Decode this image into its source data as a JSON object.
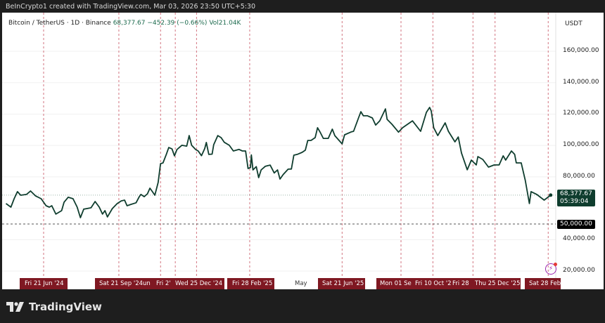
{
  "header": {
    "credit": "BeInCrypto1 created with TradingView.com, Mar 03, 2026 23:50 UTC+5:30"
  },
  "legend": {
    "symbol": "Bitcoin / TetherUS · 1D · Binance",
    "last": "68,377.67",
    "change": "−452.39 (−0.66%)",
    "volume": "Vol21.04K"
  },
  "price_axis": {
    "currency": "USDT",
    "ticks": [
      "160,000.00",
      "140,000.00",
      "120,000.00",
      "100,000.00",
      "80,000.00",
      "40,000.00",
      "20,000.00"
    ]
  },
  "price_tag": {
    "price": "68,377.67",
    "countdown": "05:39:04",
    "color": "#0f3d2e"
  },
  "level_tag": {
    "price": "50,000.00"
  },
  "colors": {
    "line": "#0f3d2e",
    "marker_lines": "#c0394a",
    "date_label_bg": "#7f1822"
  },
  "brand": {
    "name": "TradingView"
  },
  "chart_data": {
    "type": "line",
    "title": "Bitcoin / TetherUS · 1D · Binance",
    "ylabel": "USDT",
    "ylim": [
      20000,
      160000
    ],
    "y_ticks": [
      20000,
      40000,
      60000,
      80000,
      100000,
      120000,
      140000,
      160000
    ],
    "grid": true,
    "horizontal_levels": [
      50000
    ],
    "last_price": 68377.67,
    "marker_dates": [
      "2024-06-21",
      "2024-09-21",
      "2024-11-11",
      "2024-11-29",
      "2024-12-25",
      "2025-02-28",
      "2025-06-21",
      "2025-09-01",
      "2025-10-10",
      "2025-11-28",
      "2025-12-25",
      "2026-02-28"
    ],
    "x_labels": [
      {
        "text": "Fri 21 Jun '24",
        "boxed": true
      },
      {
        "text": "Sat 21 Sep '24",
        "boxed": true
      },
      {
        "text": "un",
        "boxed": true
      },
      {
        "text": "Fri 2'",
        "boxed": true
      },
      {
        "text": "Wed 25 Dec '24",
        "boxed": true
      },
      {
        "text": "Fri 28 Feb '25",
        "boxed": true
      },
      {
        "text": "May",
        "boxed": false
      },
      {
        "text": "Sat 21 Jun '25",
        "boxed": true
      },
      {
        "text": "Mon 01 Se",
        "boxed": true
      },
      {
        "text": "Fri 10 Oct '2",
        "boxed": true
      },
      {
        "text": "Fri 28",
        "boxed": true
      },
      {
        "text": "Thu 25 Dec '25",
        "boxed": true
      },
      {
        "text": "Sat 28 Feb",
        "boxed": true
      }
    ],
    "series": [
      {
        "points": [
          [
            "2024-05-06",
            63000
          ],
          [
            "2024-05-12",
            60700
          ],
          [
            "2024-05-16",
            66100
          ],
          [
            "2024-05-20",
            70600
          ],
          [
            "2024-05-24",
            68300
          ],
          [
            "2024-05-31",
            68800
          ],
          [
            "2024-06-05",
            71000
          ],
          [
            "2024-06-11",
            67900
          ],
          [
            "2024-06-18",
            66100
          ],
          [
            "2024-06-24",
            61600
          ],
          [
            "2024-06-28",
            60700
          ],
          [
            "2024-07-01",
            61600
          ],
          [
            "2024-07-06",
            56300
          ],
          [
            "2024-07-13",
            58500
          ],
          [
            "2024-07-16",
            63900
          ],
          [
            "2024-07-21",
            67000
          ],
          [
            "2024-07-27",
            66100
          ],
          [
            "2024-08-01",
            60700
          ],
          [
            "2024-08-05",
            54000
          ],
          [
            "2024-08-09",
            59400
          ],
          [
            "2024-08-18",
            60300
          ],
          [
            "2024-08-23",
            64300
          ],
          [
            "2024-08-28",
            60700
          ],
          [
            "2024-09-01",
            56300
          ],
          [
            "2024-09-04",
            58500
          ],
          [
            "2024-09-07",
            54500
          ],
          [
            "2024-09-13",
            59800
          ],
          [
            "2024-09-19",
            63000
          ],
          [
            "2024-09-24",
            64700
          ],
          [
            "2024-09-28",
            65200
          ],
          [
            "2024-10-01",
            61600
          ],
          [
            "2024-10-06",
            62500
          ],
          [
            "2024-10-12",
            63500
          ],
          [
            "2024-10-16",
            67400
          ],
          [
            "2024-10-18",
            68800
          ],
          [
            "2024-10-22",
            67400
          ],
          [
            "2024-10-26",
            69200
          ],
          [
            "2024-10-29",
            72800
          ],
          [
            "2024-11-01",
            70600
          ],
          [
            "2024-11-04",
            68300
          ],
          [
            "2024-11-08",
            76400
          ],
          [
            "2024-11-11",
            88400
          ],
          [
            "2024-11-14",
            88900
          ],
          [
            "2024-11-18",
            94300
          ],
          [
            "2024-11-21",
            98700
          ],
          [
            "2024-11-25",
            97800
          ],
          [
            "2024-11-28",
            93400
          ],
          [
            "2024-12-01",
            97400
          ],
          [
            "2024-12-07",
            100100
          ],
          [
            "2024-12-13",
            99600
          ],
          [
            "2024-12-16",
            106300
          ],
          [
            "2024-12-19",
            100100
          ],
          [
            "2024-12-24",
            97400
          ],
          [
            "2024-12-27",
            96500
          ],
          [
            "2024-12-31",
            93500
          ],
          [
            "2025-01-04",
            98000
          ],
          [
            "2025-01-06",
            101900
          ],
          [
            "2025-01-09",
            94300
          ],
          [
            "2025-01-13",
            94500
          ],
          [
            "2025-01-15",
            100500
          ],
          [
            "2025-01-20",
            106300
          ],
          [
            "2025-01-24",
            105000
          ],
          [
            "2025-01-28",
            102000
          ],
          [
            "2025-02-03",
            100100
          ],
          [
            "2025-02-08",
            96500
          ],
          [
            "2025-02-15",
            97500
          ],
          [
            "2025-02-19",
            96500
          ],
          [
            "2025-02-23",
            96500
          ],
          [
            "2025-02-26",
            85300
          ],
          [
            "2025-03-01",
            86000
          ],
          [
            "2025-03-02",
            94000
          ],
          [
            "2025-03-04",
            84400
          ],
          [
            "2025-03-08",
            86500
          ],
          [
            "2025-03-11",
            79500
          ],
          [
            "2025-03-14",
            84400
          ],
          [
            "2025-03-19",
            86700
          ],
          [
            "2025-03-25",
            87500
          ],
          [
            "2025-03-30",
            82500
          ],
          [
            "2025-04-03",
            84400
          ],
          [
            "2025-04-06",
            78600
          ],
          [
            "2025-04-10",
            81500
          ],
          [
            "2025-04-16",
            84900
          ],
          [
            "2025-04-20",
            85000
          ],
          [
            "2025-04-23",
            93800
          ],
          [
            "2025-04-27",
            94300
          ],
          [
            "2025-05-03",
            95600
          ],
          [
            "2025-05-07",
            97000
          ],
          [
            "2025-05-10",
            103200
          ],
          [
            "2025-05-14",
            103200
          ],
          [
            "2025-05-19",
            105000
          ],
          [
            "2025-05-22",
            111300
          ],
          [
            "2025-05-25",
            108600
          ],
          [
            "2025-05-29",
            104500
          ],
          [
            "2025-06-04",
            104500
          ],
          [
            "2025-06-09",
            110400
          ],
          [
            "2025-06-12",
            106300
          ],
          [
            "2025-06-21",
            101000
          ],
          [
            "2025-06-24",
            106800
          ],
          [
            "2025-07-02",
            108600
          ],
          [
            "2025-07-05",
            109000
          ],
          [
            "2025-07-11",
            117500
          ],
          [
            "2025-07-14",
            121500
          ],
          [
            "2025-07-17",
            118900
          ],
          [
            "2025-07-22",
            118900
          ],
          [
            "2025-07-28",
            117500
          ],
          [
            "2025-08-01",
            113000
          ],
          [
            "2025-08-06",
            115700
          ],
          [
            "2025-08-13",
            123300
          ],
          [
            "2025-08-15",
            116600
          ],
          [
            "2025-08-21",
            113500
          ],
          [
            "2025-08-29",
            108500
          ],
          [
            "2025-09-03",
            111300
          ],
          [
            "2025-09-15",
            115700
          ],
          [
            "2025-09-25",
            109000
          ],
          [
            "2025-10-02",
            121100
          ],
          [
            "2025-10-06",
            124200
          ],
          [
            "2025-10-08",
            122000
          ],
          [
            "2025-10-11",
            111300
          ],
          [
            "2025-10-16",
            106300
          ],
          [
            "2025-10-25",
            114400
          ],
          [
            "2025-10-29",
            109000
          ],
          [
            "2025-11-06",
            102300
          ],
          [
            "2025-11-10",
            105400
          ],
          [
            "2025-11-14",
            95200
          ],
          [
            "2025-11-21",
            84500
          ],
          [
            "2025-11-26",
            90700
          ],
          [
            "2025-12-02",
            87600
          ],
          [
            "2025-12-04",
            92900
          ],
          [
            "2025-12-10",
            91100
          ],
          [
            "2025-12-17",
            86200
          ],
          [
            "2025-12-24",
            87600
          ],
          [
            "2025-12-30",
            87600
          ],
          [
            "2026-01-04",
            93400
          ],
          [
            "2026-01-07",
            90700
          ],
          [
            "2026-01-14",
            96500
          ],
          [
            "2026-01-18",
            94300
          ],
          [
            "2026-01-20",
            88900
          ],
          [
            "2026-01-26",
            88900
          ],
          [
            "2026-01-31",
            77700
          ],
          [
            "2026-02-05",
            63000
          ],
          [
            "2026-02-07",
            70600
          ],
          [
            "2026-02-14",
            68800
          ],
          [
            "2026-02-23",
            65200
          ],
          [
            "2026-03-03",
            68377.67
          ]
        ]
      }
    ]
  }
}
